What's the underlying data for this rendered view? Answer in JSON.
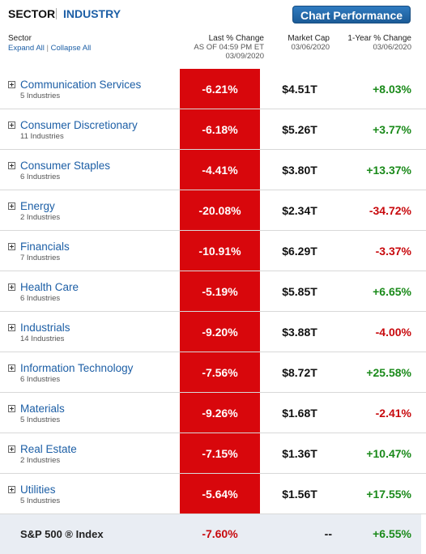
{
  "tabs": {
    "sector": "SECTOR",
    "industry": "INDUSTRY"
  },
  "chart_button": "Chart Performance",
  "header": {
    "sector": "Sector",
    "expand_all": "Expand All",
    "link_sep": "|",
    "collapse_all": "Collapse All",
    "last_change": "Last % Change",
    "last_change_asof": "AS OF 04:59 PM ET",
    "last_change_date": "03/09/2020",
    "market_cap": "Market Cap",
    "market_cap_date": "03/06/2020",
    "one_year": "1-Year % Change",
    "one_year_date": "03/06/2020"
  },
  "sectors": [
    {
      "name": "Communication Services",
      "industries": "5 Industries",
      "last": "-6.21%",
      "mcap": "$4.51T",
      "year": "+8.03%",
      "year_dir": "pos"
    },
    {
      "name": "Consumer Discretionary",
      "industries": "11 Industries",
      "last": "-6.18%",
      "mcap": "$5.26T",
      "year": "+3.77%",
      "year_dir": "pos"
    },
    {
      "name": "Consumer Staples",
      "industries": "6 Industries",
      "last": "-4.41%",
      "mcap": "$3.80T",
      "year": "+13.37%",
      "year_dir": "pos"
    },
    {
      "name": "Energy",
      "industries": "2 Industries",
      "last": "-20.08%",
      "mcap": "$2.34T",
      "year": "-34.72%",
      "year_dir": "neg"
    },
    {
      "name": "Financials",
      "industries": "7 Industries",
      "last": "-10.91%",
      "mcap": "$6.29T",
      "year": "-3.37%",
      "year_dir": "neg"
    },
    {
      "name": "Health Care",
      "industries": "6 Industries",
      "last": "-5.19%",
      "mcap": "$5.85T",
      "year": "+6.65%",
      "year_dir": "pos"
    },
    {
      "name": "Industrials",
      "industries": "14 Industries",
      "last": "-9.20%",
      "mcap": "$3.88T",
      "year": "-4.00%",
      "year_dir": "neg"
    },
    {
      "name": "Information Technology",
      "industries": "6 Industries",
      "last": "-7.56%",
      "mcap": "$8.72T",
      "year": "+25.58%",
      "year_dir": "pos"
    },
    {
      "name": "Materials",
      "industries": "5 Industries",
      "last": "-9.26%",
      "mcap": "$1.68T",
      "year": "-2.41%",
      "year_dir": "neg"
    },
    {
      "name": "Real Estate",
      "industries": "2 Industries",
      "last": "-7.15%",
      "mcap": "$1.36T",
      "year": "+10.47%",
      "year_dir": "pos"
    },
    {
      "name": "Utilities",
      "industries": "5 Industries",
      "last": "-5.64%",
      "mcap": "$1.56T",
      "year": "+17.55%",
      "year_dir": "pos"
    }
  ],
  "index_row": {
    "name": "S&P 500 ® Index",
    "last": "-7.60%",
    "mcap": "--",
    "year": "+6.55%"
  },
  "colors": {
    "accent_blue": "#1d5fa6",
    "negative_red": "#d8070c",
    "positive_green": "#1a8a1a",
    "footer_bg": "#e9edf3"
  }
}
